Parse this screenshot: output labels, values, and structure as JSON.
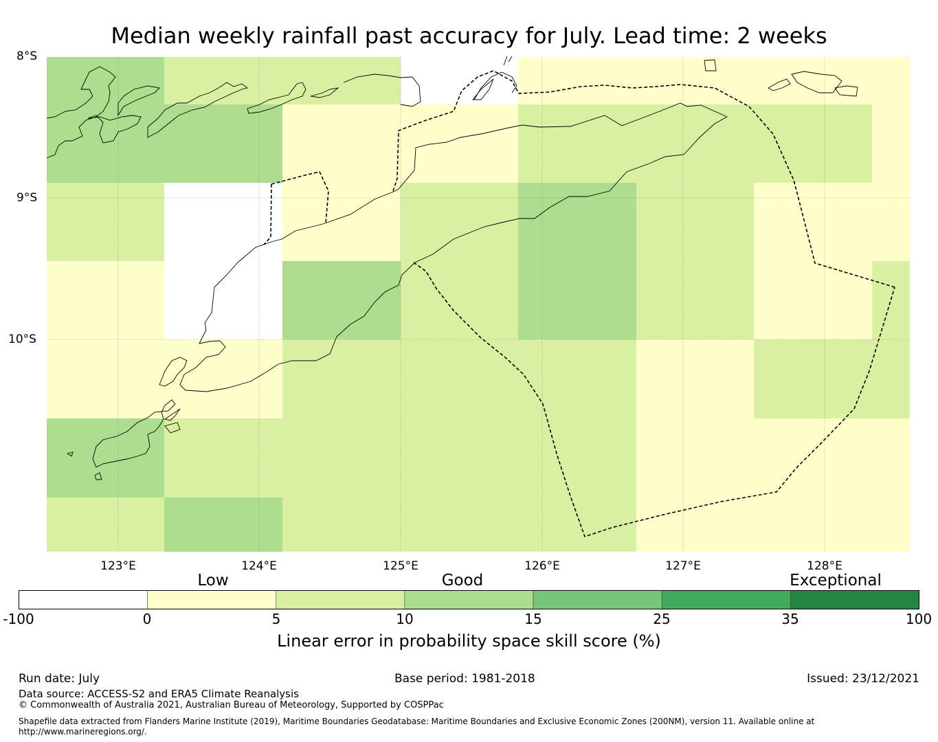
{
  "title": "Median weekly rainfall past accuracy for July. Lead time: 2 weeks",
  "map": {
    "lat_labels": [
      "8°S",
      "9°S",
      "10°S"
    ],
    "lon_labels": [
      "123°E",
      "124°E",
      "125°E",
      "126°E",
      "127°E",
      "128°E"
    ],
    "extent": {
      "lon_min": 122.5,
      "lon_max": 128.6,
      "lat_min": -11.5,
      "lat_max": -8.0
    },
    "cell_colors": {
      "none": "#ffffff",
      "0-5": "#ffffcc",
      "5-10": "#d9f0a3",
      "10-15": "#addd8e",
      "15-25": "#78c679",
      "25-35": "#41ab5d",
      "35-100": "#238443"
    }
  },
  "colorbar": {
    "categories": [
      "Low",
      "Good",
      "Exceptional"
    ],
    "ticks": [
      "-100",
      "0",
      "5",
      "10",
      "15",
      "25",
      "35",
      "100"
    ],
    "colors": [
      "#ffffff",
      "#ffffcc",
      "#d9f0a3",
      "#addd8e",
      "#78c679",
      "#41ab5d",
      "#238443"
    ],
    "label": "Linear error in probability space skill score (%)"
  },
  "footer": {
    "run_date": "Run date: July",
    "base_period": "Base period: 1981-2018",
    "issued": "Issued: 23/12/2021",
    "data_source": "Data source: ACCESS-S2 and ERA5 Climate Reanalysis",
    "copyright": "© Commonwealth of Australia 2021, Australian Bureau of Meteorology, Supported by COSPPac",
    "shapefile_line1": "Shapefile data extracted from Flanders Marine Institute (2019), Maritime Boundaries Geodatabase: Maritime Boundaries and Exclusive Economic Zones (200NM), version 11. Available online at",
    "shapefile_line2": "http://www.marineregions.org/."
  }
}
